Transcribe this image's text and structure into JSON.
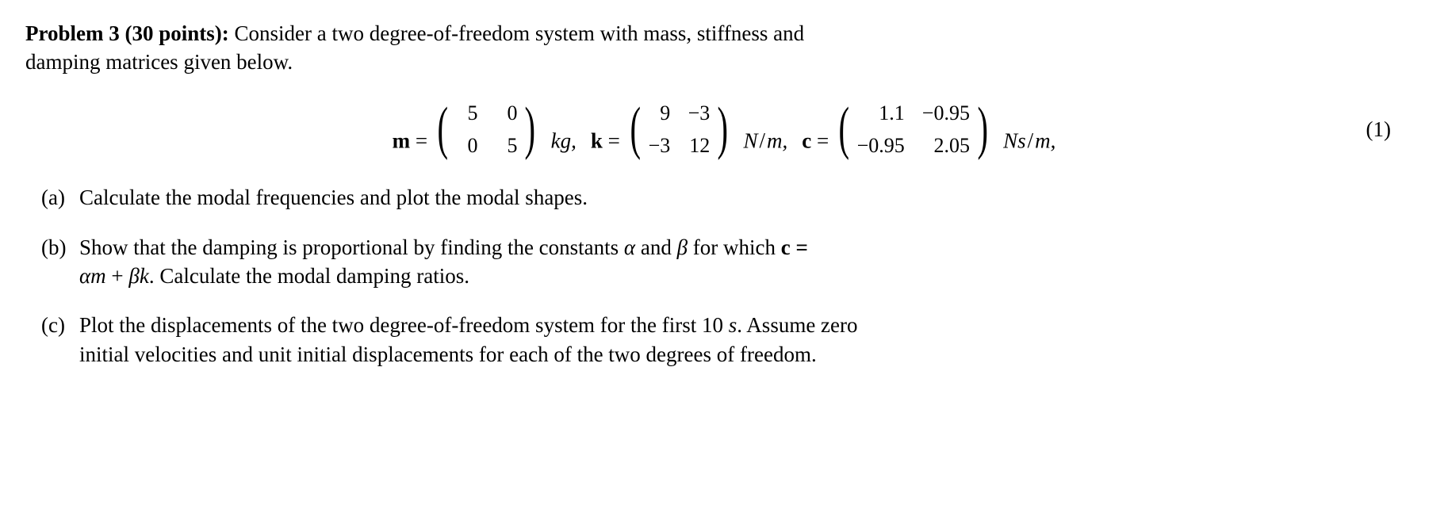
{
  "header": {
    "title": "Problem 3 (30 points):",
    "intro_1": "Consider a two degree-of-freedom system with mass, stiffness and",
    "intro_2": "damping matrices given below."
  },
  "equation": {
    "m_label": "m",
    "eq": " = ",
    "m_matrix": [
      "5",
      "0",
      "0",
      "5"
    ],
    "m_unit": "kg,",
    "k_label": "k",
    "k_matrix": [
      "9",
      "−3",
      "−3",
      "12"
    ],
    "k_unit_N": "N",
    "k_unit_m": "m,",
    "c_label": "c",
    "c_matrix": [
      "1.1",
      "−0.95",
      "−0.95",
      "2.05"
    ],
    "c_unit_Ns": "Ns",
    "c_unit_m": "m,",
    "eqn_number": "(1)"
  },
  "parts": {
    "a": {
      "label": "(a)",
      "text": "Calculate the modal frequencies and plot the modal shapes."
    },
    "b": {
      "label": "(b)",
      "prefix": "Show that the damping is proportional by finding the constants ",
      "alpha": "α",
      "and": " and ",
      "beta": "β",
      "for_which": " for which ",
      "c_eq": "c =",
      "am": "αm",
      "plus": " + ",
      "bk": "βk",
      "period": ". Calculate the modal damping ratios."
    },
    "c": {
      "label": "(c)",
      "line1_prefix": "Plot the displacements of the two degree-of-freedom system for the first ",
      "ten": "10",
      "s": " s",
      "line1_suffix": ". Assume zero",
      "line2": "initial velocities and unit initial displacements for each of the two degrees of freedom."
    }
  }
}
